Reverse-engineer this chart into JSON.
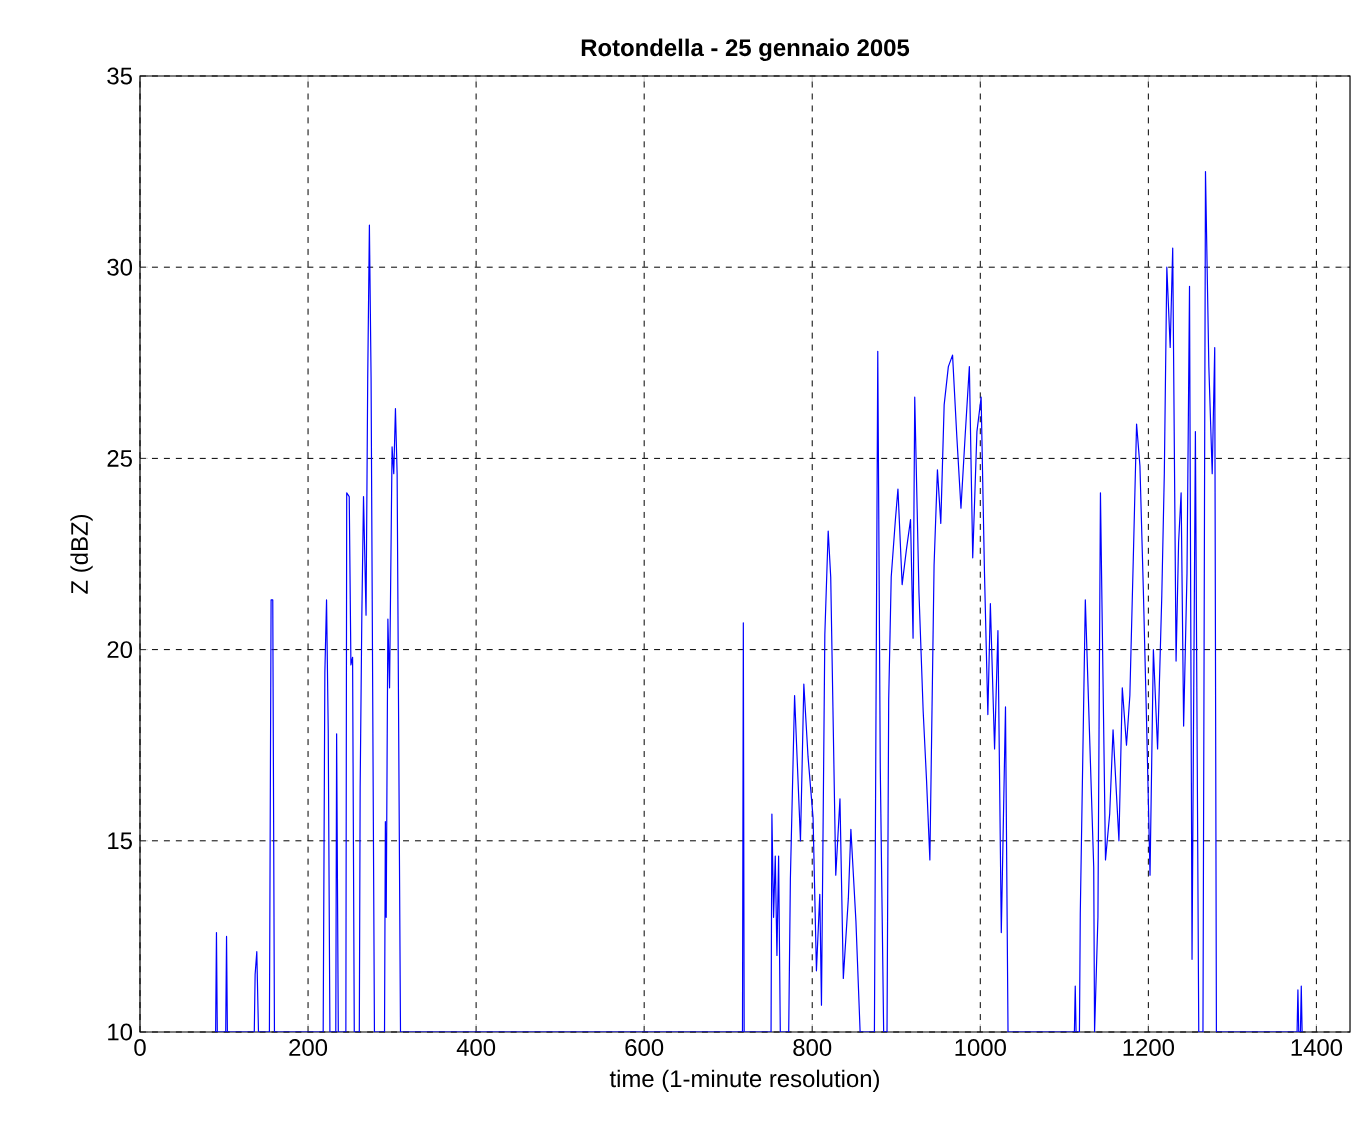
{
  "chart_data": {
    "type": "line",
    "title": "Rotondella - 25 gennaio 2005",
    "xlabel": "time (1-minute resolution)",
    "ylabel": "Z (dBZ)",
    "xlim": [
      0,
      1440
    ],
    "xticks": [
      0,
      200,
      400,
      600,
      800,
      1000,
      1200,
      1400
    ],
    "ylim": [
      10,
      35
    ],
    "yticks": [
      10,
      15,
      20,
      25,
      30,
      35
    ],
    "grid": true,
    "series": [
      {
        "color": "#0000ff",
        "x": [
          90,
          91,
          92,
          102,
          103,
          104,
          136,
          137,
          139,
          141,
          154,
          156,
          158,
          160,
          218,
          220,
          222,
          224,
          226,
          233,
          234,
          236,
          245,
          246,
          249,
          251,
          253,
          255,
          261,
          262,
          264,
          266,
          269,
          271,
          273,
          275,
          279,
          291,
          292,
          293,
          295,
          297,
          300,
          302,
          304,
          306,
          310,
          717,
          718,
          719,
          751,
          752,
          754,
          756,
          758,
          760,
          762,
          772,
          774,
          779,
          786,
          788,
          790,
          795,
          801,
          805,
          809,
          811,
          815,
          819,
          822,
          828,
          833,
          837,
          843,
          846,
          852,
          857,
          874,
          878,
          881,
          885,
          889,
          891,
          894,
          899,
          902,
          907,
          912,
          917,
          920,
          922,
          927,
          932,
          936,
          940,
          945,
          949,
          953,
          957,
          962,
          967,
          972,
          977,
          982,
          987,
          991,
          996,
          1001,
          1005,
          1009,
          1012,
          1017,
          1021,
          1025,
          1030,
          1033,
          1112,
          1113,
          1114,
          1118,
          1119,
          1125,
          1130,
          1135,
          1136,
          1140,
          1143,
          1149,
          1154,
          1158,
          1165,
          1169,
          1174,
          1178,
          1182,
          1186,
          1190,
          1194,
          1198,
          1202,
          1206,
          1211,
          1216,
          1219,
          1222,
          1226,
          1229,
          1233,
          1236,
          1239,
          1242,
          1246,
          1249,
          1252,
          1256,
          1260,
          1265,
          1268,
          1272,
          1276,
          1279,
          1281,
          1377,
          1378,
          1379,
          1381,
          1382,
          1383
        ],
        "values": [
          10,
          12.6,
          10,
          10,
          12.5,
          10,
          10,
          11.5,
          12.1,
          10,
          10,
          21.3,
          21.3,
          10,
          10,
          19.4,
          21.3,
          17.9,
          10,
          10,
          17.8,
          10,
          10,
          24.1,
          24.0,
          19.6,
          19.8,
          10,
          10,
          16.4,
          20.9,
          24.0,
          20.9,
          27.1,
          31.1,
          27.1,
          10,
          10,
          15.5,
          13,
          20.8,
          19,
          25.3,
          24.6,
          26.3,
          24.6,
          10,
          10,
          20.7,
          10,
          10,
          15.7,
          13,
          14.6,
          12,
          14.6,
          10,
          10,
          14,
          18.8,
          15,
          17,
          19.1,
          17.2,
          15.6,
          11.6,
          13.6,
          10.7,
          20.4,
          23.1,
          21.9,
          14.1,
          16.1,
          11.4,
          13.5,
          15.3,
          12.9,
          10,
          10,
          27.8,
          16.9,
          10,
          10,
          18.7,
          21.9,
          23.4,
          24.2,
          21.7,
          22.6,
          23.4,
          20.3,
          26.6,
          21.5,
          18.4,
          16.6,
          14.5,
          22.2,
          24.7,
          23.3,
          26.4,
          27.4,
          27.7,
          25.6,
          23.7,
          25.6,
          27.4,
          22.4,
          25.7,
          26.6,
          22.0,
          18.3,
          21.2,
          17.4,
          20.5,
          12.6,
          18.5,
          10,
          10,
          11.2,
          10,
          10,
          13.1,
          21.3,
          17.8,
          14.3,
          10,
          13,
          24.1,
          14.5,
          15.7,
          17.9,
          15,
          19,
          17.5,
          18.8,
          22.3,
          25.9,
          24.8,
          21.6,
          18,
          14.1,
          20,
          17.4,
          21.4,
          24.6,
          30.0,
          27.9,
          30.5,
          19.7,
          22.8,
          24.1,
          18,
          22.0,
          29.5,
          11.9,
          25.7,
          10,
          10,
          32.5,
          27.4,
          24.6,
          27.9,
          10,
          10,
          11.1,
          10,
          10,
          11.2,
          10
        ]
      }
    ]
  }
}
